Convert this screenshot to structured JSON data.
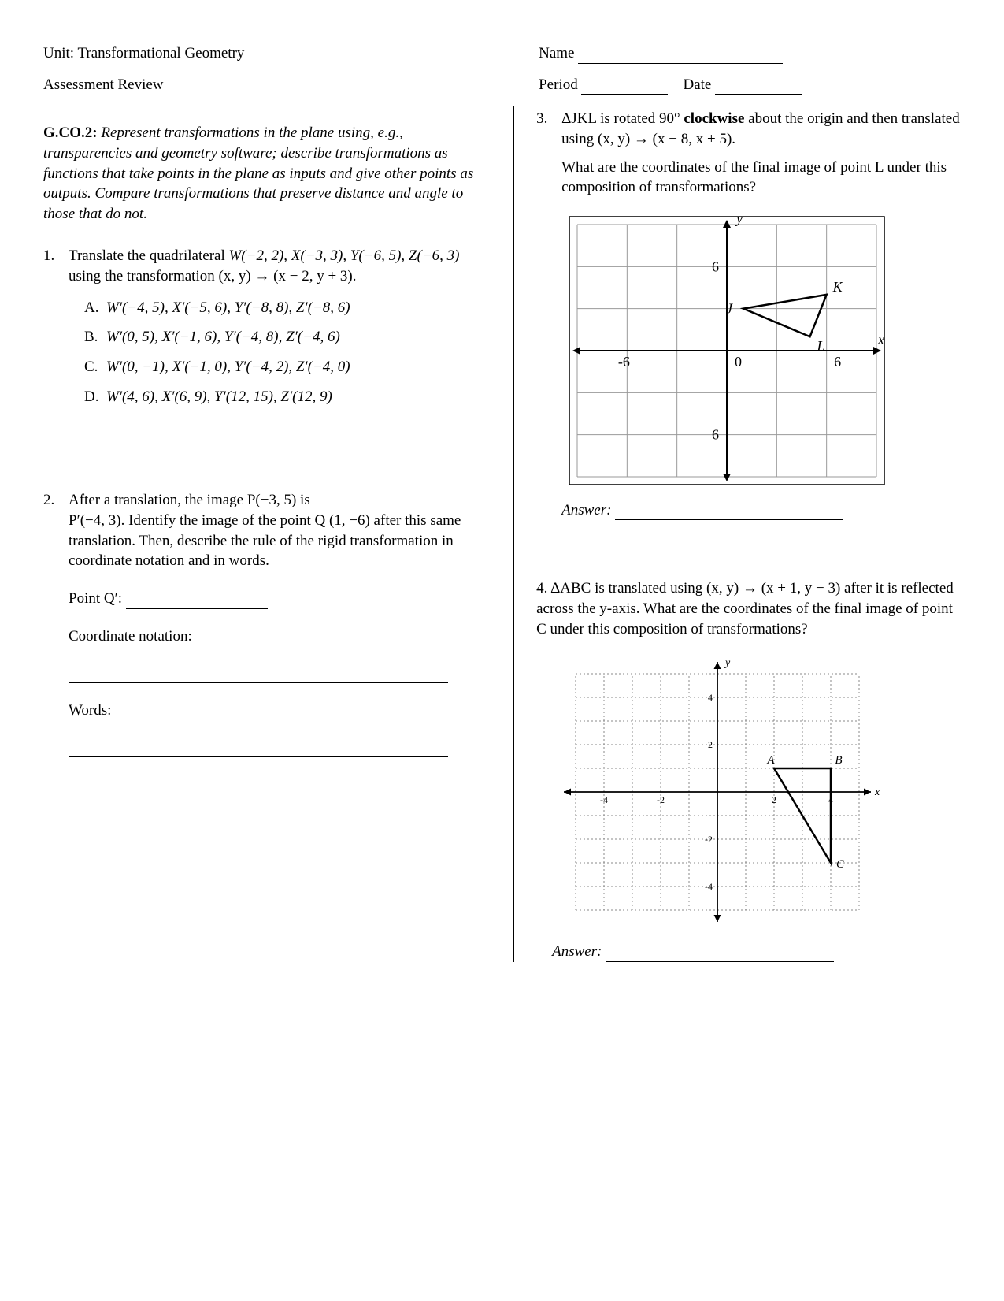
{
  "header": {
    "unit_label": "Unit: Transformational Geometry",
    "assessment_label": "Assessment Review",
    "name_label": "Name",
    "period_label": "Period",
    "date_label": "Date"
  },
  "standard": {
    "code": "G.CO.2:",
    "text": "Represent transformations in the plane using, e.g., transparencies and geometry software; describe transformations as functions that take points in the plane as inputs and give other points as outputs. Compare transformations that preserve distance and angle to those that do not."
  },
  "q1": {
    "number": "1.",
    "prompt_a": "Translate the quadrilateral ",
    "points": "W(−2, 2), X(−3, 3), Y(−6, 5), Z(−6, 3)",
    "prompt_b": " using the transformation (x, y) → (x − 2, y + 3).",
    "choices": [
      {
        "letter": "A.",
        "text": "W′(−4, 5), X′(−5, 6), Y′(−8, 8), Z′(−8, 6)"
      },
      {
        "letter": "B.",
        "text": "W′(0, 5), X′(−1, 6), Y′(−4, 8), Z′(−4, 6)"
      },
      {
        "letter": "C.",
        "text": "W′(0, −1), X′(−1, 0), Y′(−4, 2), Z′(−4, 0)"
      },
      {
        "letter": "D.",
        "text": "W′(4, 6), X′(6, 9), Y′(12, 15), Z′(12, 9)"
      }
    ]
  },
  "q2": {
    "number": "2.",
    "line1": "After a translation, the image P(−3, 5) is",
    "line2": "P′(−4, 3). Identify the image of the point Q (1, −6) after this same translation. Then, describe the rule of the rigid transformation in coordinate notation and in words.",
    "point_q_label": "Point Q′:",
    "coord_label": "Coordinate notation:",
    "words_label": "Words:"
  },
  "q3": {
    "number": "3.",
    "prompt_a": "ΔJKL is rotated 90° ",
    "bold_word": "clockwise",
    "prompt_b": " about the origin and then translated using (x, y) → (x − 8, x + 5).",
    "prompt_c": "What are the coordinates of the final image of point L under this composition of transformations?",
    "answer_label": "Answer:",
    "graph": {
      "type": "coordinate-grid",
      "xlim": [
        -9,
        9
      ],
      "ylim": [
        -9,
        9
      ],
      "ticks": [
        -6,
        0,
        6
      ],
      "triangle": {
        "J": [
          1,
          3
        ],
        "K": [
          6,
          4
        ],
        "L": [
          5,
          1
        ]
      },
      "grid_color": "#000000",
      "line_color": "#000000",
      "font_size": 18
    }
  },
  "q4": {
    "number": "4.",
    "prompt": "ΔABC is translated using (x, y) → (x + 1, y − 3) after it is reflected across the y-axis.  What are the coordinates of the final image of point C under this composition of transformations?",
    "answer_label": "Answer:",
    "graph": {
      "type": "coordinate-grid-dotted",
      "xlim": [
        -5,
        5
      ],
      "ylim": [
        -5,
        5
      ],
      "ticks": [
        -4,
        -2,
        2,
        4
      ],
      "triangle": {
        "A": [
          2,
          1
        ],
        "B": [
          4,
          1
        ],
        "C": [
          4,
          -3
        ]
      },
      "grid_color": "#888888",
      "line_color": "#000000",
      "font_size": 13
    }
  },
  "styles": {
    "font_family": "Times New Roman",
    "base_font_size_pt": 14,
    "text_color": "#000000",
    "background_color": "#ffffff"
  }
}
